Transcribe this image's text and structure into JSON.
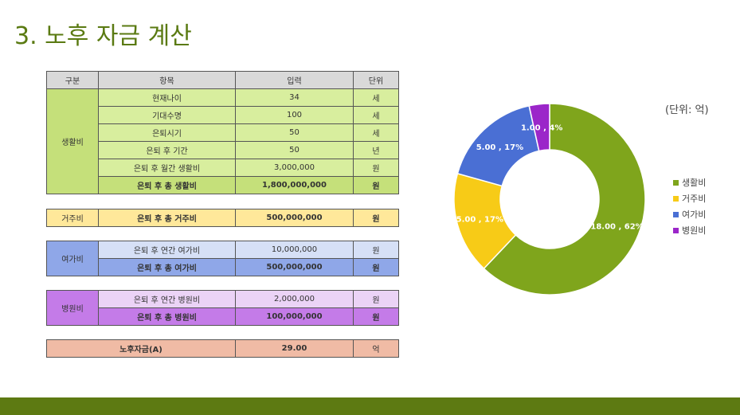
{
  "title": "3. 노후 자금 계산",
  "table": {
    "headers": [
      "구분",
      "항목",
      "입력",
      "단위"
    ],
    "living": {
      "category": "생활비",
      "rows": [
        {
          "item": "현재나이",
          "value": "34",
          "unit": "세"
        },
        {
          "item": "기대수명",
          "value": "100",
          "unit": "세"
        },
        {
          "item": "은퇴시기",
          "value": "50",
          "unit": "세"
        },
        {
          "item": "은퇴 후 기간",
          "value": "50",
          "unit": "년"
        },
        {
          "item": "은퇴 후 월간 생활비",
          "value": "3,000,000",
          "unit": "원"
        }
      ],
      "total": {
        "item": "은퇴 후 총 생활비",
        "value": "1,800,000,000",
        "unit": "원"
      }
    },
    "housing": {
      "category": "거주비",
      "total": {
        "item": "은퇴 후 총 거주비",
        "value": "500,000,000",
        "unit": "원"
      }
    },
    "leisure": {
      "category": "여가비",
      "row": {
        "item": "은퇴 후 연간 여가비",
        "value": "10,000,000",
        "unit": "원"
      },
      "total": {
        "item": "은퇴 후 총 여가비",
        "value": "500,000,000",
        "unit": "원"
      }
    },
    "hospital": {
      "category": "병원비",
      "row": {
        "item": "은퇴 후 연간 병원비",
        "value": "2,000,000",
        "unit": "원"
      },
      "total": {
        "item": "은퇴 후 총 병원비",
        "value": "100,000,000",
        "unit": "원"
      }
    },
    "summary": {
      "item": "노후자금(A)",
      "value": "29.00",
      "unit": "억"
    }
  },
  "chart_data": {
    "type": "pie",
    "subtitle": "(단위: 억)",
    "legend_position": "right",
    "categories": [
      "생활비",
      "거주비",
      "여가비",
      "병원비"
    ],
    "values": [
      18,
      5,
      5,
      1
    ],
    "data_labels": [
      "18.00 , 62%",
      "5.00 , 17%",
      "5.00 , 17%",
      "1.00 , 4%"
    ],
    "colors": [
      "#7fa51c",
      "#f7cb17",
      "#4a6fd4",
      "#9b26c9"
    ]
  }
}
